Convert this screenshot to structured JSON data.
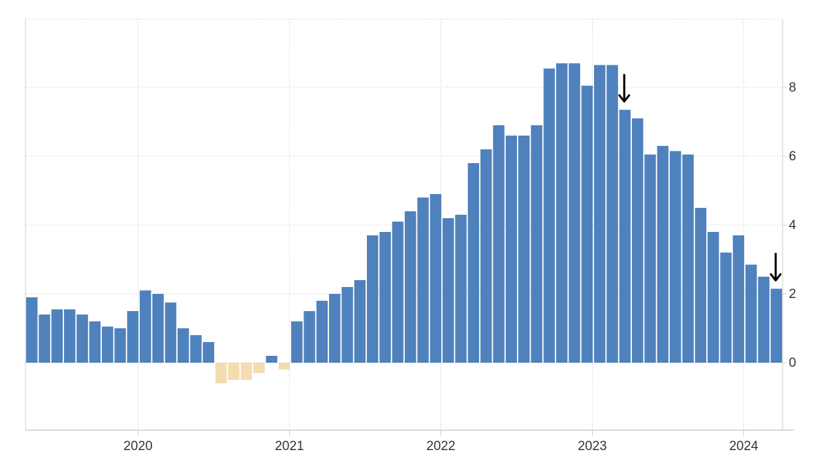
{
  "chart_data": {
    "type": "bar",
    "title": "",
    "xlabel": "",
    "ylabel": "",
    "start": "2019-04",
    "ylim": [
      -2,
      10
    ],
    "yticks": [
      0,
      2,
      4,
      6,
      8
    ],
    "ytick_labels": [
      "0",
      "2",
      "4",
      "6",
      "8"
    ],
    "xtick_labels": [
      "2020",
      "2021",
      "2022",
      "2023",
      "2024"
    ],
    "grid": true,
    "y_axis_side": "right",
    "colors": {
      "positive": "#4f81bd",
      "negative": "#f3dcb0",
      "grid": "#d8d8d8",
      "axis": "#cccccc",
      "arrow": "#000000"
    },
    "categories": [
      "2019-04",
      "2019-05",
      "2019-06",
      "2019-07",
      "2019-08",
      "2019-09",
      "2019-10",
      "2019-11",
      "2019-12",
      "2020-01",
      "2020-02",
      "2020-03",
      "2020-04",
      "2020-05",
      "2020-06",
      "2020-07",
      "2020-08",
      "2020-09",
      "2020-10",
      "2020-11",
      "2020-12",
      "2021-01",
      "2021-02",
      "2021-03",
      "2021-04",
      "2021-05",
      "2021-06",
      "2021-07",
      "2021-08",
      "2021-09",
      "2021-10",
      "2021-11",
      "2021-12",
      "2022-01",
      "2022-02",
      "2022-03",
      "2022-04",
      "2022-05",
      "2022-06",
      "2022-07",
      "2022-08",
      "2022-09",
      "2022-10",
      "2022-11",
      "2022-12",
      "2023-01",
      "2023-02",
      "2023-03",
      "2023-04",
      "2023-05",
      "2023-06",
      "2023-07",
      "2023-08",
      "2023-09",
      "2023-10",
      "2023-11",
      "2023-12",
      "2024-01",
      "2024-02",
      "2024-03"
    ],
    "values": [
      1.9,
      1.4,
      1.55,
      1.55,
      1.4,
      1.2,
      1.05,
      1.0,
      1.5,
      2.1,
      2.0,
      1.75,
      1.0,
      0.8,
      0.6,
      -0.6,
      -0.5,
      -0.5,
      -0.3,
      0.2,
      -0.2,
      1.2,
      1.5,
      1.8,
      2.0,
      2.2,
      2.4,
      3.7,
      3.8,
      4.1,
      4.4,
      4.8,
      4.9,
      4.2,
      4.3,
      5.8,
      6.2,
      6.9,
      6.6,
      6.6,
      6.9,
      8.55,
      8.7,
      8.7,
      8.05,
      8.65,
      8.65,
      7.35,
      7.1,
      6.05,
      6.3,
      6.15,
      6.05,
      4.5,
      3.8,
      3.2,
      3.7,
      2.85,
      2.5,
      2.15
    ],
    "annotations": [
      {
        "type": "down-arrow",
        "category": "2023-03"
      },
      {
        "type": "down-arrow",
        "category": "2024-03"
      }
    ]
  }
}
